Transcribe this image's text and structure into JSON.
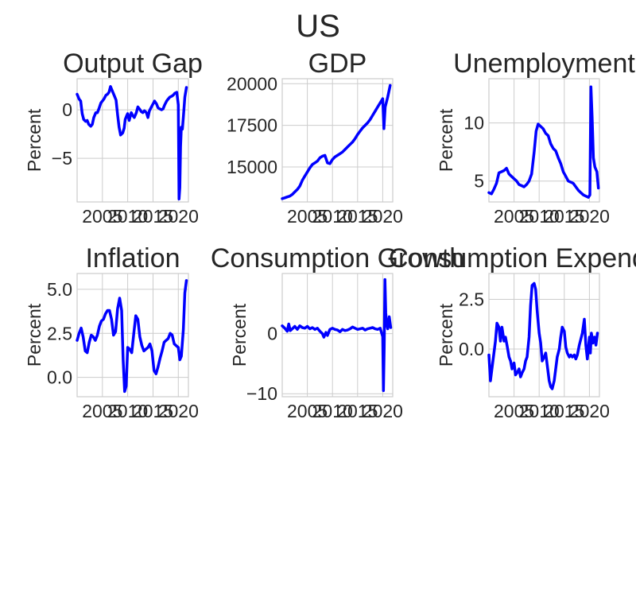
{
  "figure": {
    "title": "US"
  },
  "colors": {
    "line": "#0000ff",
    "grid": "#cccccc",
    "text": "#262626"
  },
  "chart_data": [
    {
      "type": "line",
      "title": "Output Gap",
      "ylabel": "Percent",
      "xlim": [
        2000,
        2022
      ],
      "ylim": [
        -9.5,
        3.2
      ],
      "xticks": [
        2005,
        2010,
        2015,
        2020
      ],
      "yticks": [
        -5,
        0
      ],
      "ytick_labels": [
        "−5",
        "0"
      ],
      "series": [
        {
          "x": [
            2000,
            2000.4,
            2000.7,
            2001,
            2001.3,
            2001.7,
            2002,
            2002.3,
            2002.7,
            2003,
            2003.3,
            2003.7,
            2004,
            2004.3,
            2004.7,
            2005,
            2005.3,
            2005.7,
            2006,
            2006.3,
            2006.6,
            2007,
            2007.3,
            2007.7,
            2008,
            2008.3,
            2008.6,
            2009,
            2009.3,
            2009.5,
            2009.8,
            2010,
            2010.3,
            2010.7,
            2011,
            2011.3,
            2011.7,
            2012,
            2012.3,
            2012.7,
            2013,
            2013.3,
            2013.7,
            2014,
            2014.3,
            2014.7,
            2015,
            2015.3,
            2015.7,
            2016,
            2016.3,
            2016.7,
            2017,
            2017.3,
            2017.7,
            2018,
            2018.3,
            2018.7,
            2019,
            2019.3,
            2019.7,
            2020,
            2020.15,
            2020.3,
            2020.45,
            2020.6,
            2020.8,
            2021,
            2021.3,
            2021.6
          ],
          "y": [
            1.6,
            1.1,
            0.9,
            -0.4,
            -1.0,
            -1.2,
            -1.1,
            -1.5,
            -1.7,
            -1.5,
            -0.8,
            -0.3,
            -0.3,
            0.1,
            0.7,
            0.9,
            1.1,
            1.5,
            1.6,
            1.8,
            2.4,
            1.9,
            1.5,
            1.0,
            -0.5,
            -1.8,
            -2.6,
            -2.4,
            -1.9,
            -1.0,
            -0.6,
            -0.4,
            -1.1,
            -0.3,
            -0.6,
            -0.8,
            -0.3,
            0.3,
            0.1,
            -0.2,
            -0.3,
            -0.1,
            -0.3,
            -0.8,
            -0.1,
            0.3,
            0.6,
            0.9,
            0.6,
            0.2,
            0.1,
            0.0,
            0.1,
            0.5,
            0.9,
            1.1,
            1.3,
            1.4,
            1.5,
            1.7,
            1.8,
            0.5,
            -9.2,
            -8.0,
            -3.8,
            -1.8,
            -2.0,
            -0.8,
            1.3,
            2.3
          ]
        }
      ]
    },
    {
      "type": "line",
      "title": "GDP",
      "ylabel": "",
      "xlim": [
        2000,
        2022
      ],
      "ylim": [
        12900,
        20300
      ],
      "xticks": [
        2005,
        2010,
        2015,
        2020
      ],
      "yticks": [
        15000,
        17500,
        20000
      ],
      "ytick_labels": [
        "15000",
        "17500",
        "20000"
      ],
      "series": [
        {
          "x": [
            2000,
            2000.5,
            2001,
            2001.5,
            2002,
            2002.5,
            2003,
            2003.5,
            2004,
            2004.5,
            2005,
            2005.5,
            2006,
            2006.5,
            2007,
            2007.5,
            2008,
            2008.5,
            2009,
            2009.5,
            2010,
            2010.5,
            2011,
            2011.5,
            2012,
            2012.5,
            2013,
            2013.5,
            2014,
            2014.5,
            2015,
            2015.5,
            2016,
            2016.5,
            2017,
            2017.5,
            2018,
            2018.5,
            2019,
            2019.5,
            2020,
            2020.25,
            2020.5,
            2021,
            2021.5
          ],
          "y": [
            13100,
            13150,
            13200,
            13250,
            13350,
            13500,
            13650,
            13850,
            14200,
            14450,
            14700,
            14950,
            15150,
            15250,
            15350,
            15550,
            15650,
            15700,
            15250,
            15200,
            15450,
            15600,
            15700,
            15800,
            15900,
            16050,
            16200,
            16350,
            16500,
            16700,
            16950,
            17150,
            17350,
            17500,
            17650,
            17850,
            18100,
            18350,
            18600,
            18850,
            19100,
            17300,
            18600,
            19200,
            19900
          ]
        }
      ]
    },
    {
      "type": "line",
      "title": "Unemployment",
      "ylabel": "Percent",
      "xlim": [
        2000,
        2022
      ],
      "ylim": [
        3.2,
        13.8
      ],
      "xticks": [
        2005,
        2010,
        2015,
        2020
      ],
      "yticks": [
        5,
        10
      ],
      "ytick_labels": [
        "5",
        "10"
      ],
      "series": [
        {
          "x": [
            2000,
            2000.5,
            2001,
            2001.5,
            2002,
            2002.5,
            2003,
            2003.5,
            2004,
            2004.5,
            2005,
            2005.5,
            2006,
            2006.5,
            2007,
            2007.5,
            2008,
            2008.5,
            2009,
            2009.4,
            2009.8,
            2010.3,
            2010.8,
            2011.3,
            2011.8,
            2012.3,
            2012.8,
            2013.3,
            2013.8,
            2014.3,
            2014.8,
            2015.3,
            2015.8,
            2016.3,
            2016.8,
            2017.3,
            2017.8,
            2018.3,
            2018.8,
            2019.3,
            2019.8,
            2020.1,
            2020.3,
            2020.55,
            2020.8,
            2021.1,
            2021.5,
            2021.8
          ],
          "y": [
            4.0,
            3.9,
            4.3,
            4.8,
            5.7,
            5.8,
            5.9,
            6.1,
            5.6,
            5.4,
            5.2,
            5.0,
            4.7,
            4.6,
            4.5,
            4.7,
            5.0,
            5.6,
            7.5,
            9.3,
            9.9,
            9.7,
            9.5,
            9.1,
            8.9,
            8.2,
            7.8,
            7.6,
            7.0,
            6.5,
            5.8,
            5.4,
            5.0,
            4.9,
            4.8,
            4.5,
            4.2,
            4.0,
            3.8,
            3.7,
            3.6,
            3.8,
            13.1,
            10.5,
            7.0,
            6.2,
            5.8,
            4.4
          ]
        }
      ]
    },
    {
      "type": "line",
      "title": "Inflation",
      "ylabel": "Percent",
      "xlim": [
        2000,
        2022
      ],
      "ylim": [
        -1.1,
        5.9
      ],
      "xticks": [
        2005,
        2010,
        2015,
        2020
      ],
      "yticks": [
        0,
        2.5,
        5
      ],
      "ytick_labels": [
        "0.0",
        "2.5",
        "5.0"
      ],
      "series": [
        {
          "x": [
            2000,
            2000.4,
            2000.8,
            2001.2,
            2001.6,
            2002,
            2002.4,
            2002.8,
            2003.2,
            2003.6,
            2004,
            2004.4,
            2004.8,
            2005.2,
            2005.6,
            2006,
            2006.4,
            2006.8,
            2007.2,
            2007.6,
            2008,
            2008.4,
            2008.8,
            2009.1,
            2009.4,
            2009.7,
            2010,
            2010.4,
            2010.8,
            2011.2,
            2011.6,
            2012,
            2012.4,
            2012.8,
            2013.2,
            2013.6,
            2014,
            2014.4,
            2014.8,
            2015.2,
            2015.6,
            2016,
            2016.4,
            2016.8,
            2017.2,
            2017.6,
            2018,
            2018.4,
            2018.8,
            2019.2,
            2019.6,
            2020,
            2020.3,
            2020.6,
            2021,
            2021.3,
            2021.6
          ],
          "y": [
            2.1,
            2.5,
            2.8,
            2.3,
            1.5,
            1.4,
            2.0,
            2.4,
            2.3,
            2.1,
            2.4,
            2.9,
            3.2,
            3.3,
            3.6,
            3.8,
            3.8,
            3.3,
            2.4,
            2.6,
            3.9,
            4.5,
            3.8,
            1.0,
            -0.8,
            -0.5,
            1.7,
            1.6,
            1.4,
            2.5,
            3.5,
            3.3,
            2.3,
            1.8,
            1.5,
            1.6,
            1.7,
            1.9,
            1.5,
            0.4,
            0.2,
            0.6,
            1.1,
            1.5,
            2.0,
            2.1,
            2.2,
            2.5,
            2.4,
            1.9,
            1.8,
            1.7,
            1.0,
            1.2,
            2.7,
            4.8,
            5.5
          ]
        }
      ]
    },
    {
      "type": "line",
      "title": "Consumption Growth",
      "ylabel": "Percent",
      "xlim": [
        2000,
        2022
      ],
      "ylim": [
        -10.5,
        10
      ],
      "xticks": [
        2005,
        2010,
        2015,
        2020
      ],
      "yticks": [
        -10,
        0
      ],
      "ytick_labels": [
        "−10",
        "0"
      ],
      "series": [
        {
          "x": [
            2000,
            2000.5,
            2001,
            2001.3,
            2001.6,
            2002,
            2002.5,
            2003,
            2003.5,
            2004,
            2004.5,
            2005,
            2005.5,
            2006,
            2006.5,
            2007,
            2007.5,
            2008,
            2008.3,
            2008.7,
            2009,
            2009.5,
            2010,
            2010.5,
            2011,
            2011.5,
            2012,
            2012.5,
            2013,
            2013.5,
            2014,
            2014.5,
            2015,
            2015.5,
            2016,
            2016.5,
            2017,
            2017.5,
            2018,
            2018.5,
            2019,
            2019.5,
            2020,
            2020.15,
            2020.3,
            2020.45,
            2020.6,
            2020.8,
            2021,
            2021.3,
            2021.6
          ],
          "y": [
            1.3,
            0.9,
            0.4,
            1.6,
            0.5,
            0.8,
            1.2,
            0.7,
            1.3,
            1.0,
            0.9,
            1.2,
            0.8,
            1.0,
            0.7,
            0.9,
            0.4,
            0.0,
            -0.6,
            0.2,
            -0.3,
            0.7,
            0.9,
            0.7,
            0.6,
            0.3,
            0.7,
            0.5,
            0.6,
            0.8,
            1.1,
            0.9,
            0.7,
            0.8,
            0.9,
            0.6,
            0.8,
            0.9,
            1.0,
            0.8,
            0.7,
            0.9,
            -0.5,
            -9.5,
            -2.0,
            9.0,
            3.5,
            1.5,
            0.8,
            2.8,
            1.0
          ]
        }
      ]
    },
    {
      "type": "line",
      "title": "Consumption Expenditure",
      "ylabel": "Percent",
      "xlim": [
        2000,
        2022
      ],
      "ylim": [
        -2.4,
        3.8
      ],
      "xticks": [
        2005,
        2010,
        2015,
        2020
      ],
      "yticks": [
        0,
        2.5
      ],
      "ytick_labels": [
        "0.0",
        "2.5"
      ],
      "series": [
        {
          "x": [
            2000,
            2000.3,
            2000.7,
            2001,
            2001.3,
            2001.6,
            2002,
            2002.3,
            2002.6,
            2003,
            2003.3,
            2003.6,
            2004,
            2004.3,
            2004.6,
            2005,
            2005.3,
            2005.6,
            2006,
            2006.3,
            2006.6,
            2007,
            2007.3,
            2007.6,
            2008,
            2008.3,
            2008.6,
            2009,
            2009.3,
            2009.6,
            2010,
            2010.3,
            2010.6,
            2011,
            2011.3,
            2011.6,
            2012,
            2012.3,
            2012.6,
            2013,
            2013.3,
            2013.6,
            2014,
            2014.3,
            2014.6,
            2015,
            2015.3,
            2015.6,
            2016,
            2016.3,
            2016.6,
            2017,
            2017.3,
            2017.6,
            2018,
            2018.3,
            2018.6,
            2019,
            2019.3,
            2019.6,
            2020,
            2020.2,
            2020.4,
            2020.7,
            2021,
            2021.3,
            2021.6
          ],
          "y": [
            -0.3,
            -1.6,
            -0.8,
            -0.2,
            0.4,
            1.3,
            1.1,
            0.4,
            1.1,
            0.4,
            0.6,
            0.2,
            -0.4,
            -0.6,
            -1.0,
            -0.7,
            -1.3,
            -1.2,
            -1.0,
            -1.4,
            -1.2,
            -1.0,
            -0.6,
            -0.4,
            0.6,
            2.2,
            3.2,
            3.3,
            3.0,
            1.9,
            0.8,
            0.3,
            -0.6,
            -0.4,
            -0.2,
            -0.8,
            -1.6,
            -1.9,
            -2.0,
            -1.6,
            -1.0,
            -0.4,
            0.0,
            0.6,
            1.1,
            0.9,
            0.1,
            -0.2,
            -0.4,
            -0.3,
            -0.4,
            -0.3,
            -0.5,
            -0.3,
            0.2,
            0.5,
            0.8,
            1.5,
            0.2,
            -0.5,
            0.6,
            -0.2,
            0.8,
            0.3,
            0.6,
            0.2,
            0.8
          ]
        }
      ]
    }
  ]
}
